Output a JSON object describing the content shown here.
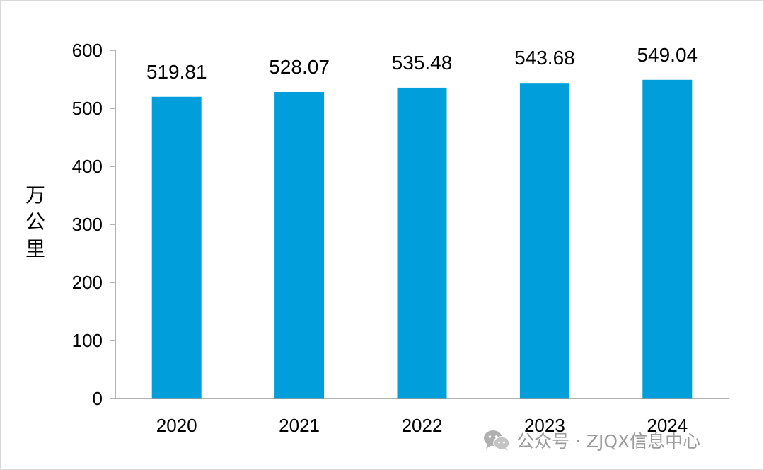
{
  "chart_data": {
    "type": "bar",
    "categories": [
      "2020",
      "2021",
      "2022",
      "2023",
      "2024"
    ],
    "values": [
      519.81,
      528.07,
      535.48,
      543.68,
      549.04
    ],
    "value_labels": [
      "519.81",
      "528.07",
      "535.48",
      "543.68",
      "549.04"
    ],
    "ylabel": "万公里",
    "ylim": [
      0,
      600
    ],
    "yticks": [
      0,
      100,
      200,
      300,
      400,
      500,
      600
    ],
    "bar_color": "#009fdb",
    "grid": false,
    "legend": "none"
  },
  "watermark": {
    "icon": "wechat-icon",
    "text": "公众号 · ZJQX信息中心"
  }
}
